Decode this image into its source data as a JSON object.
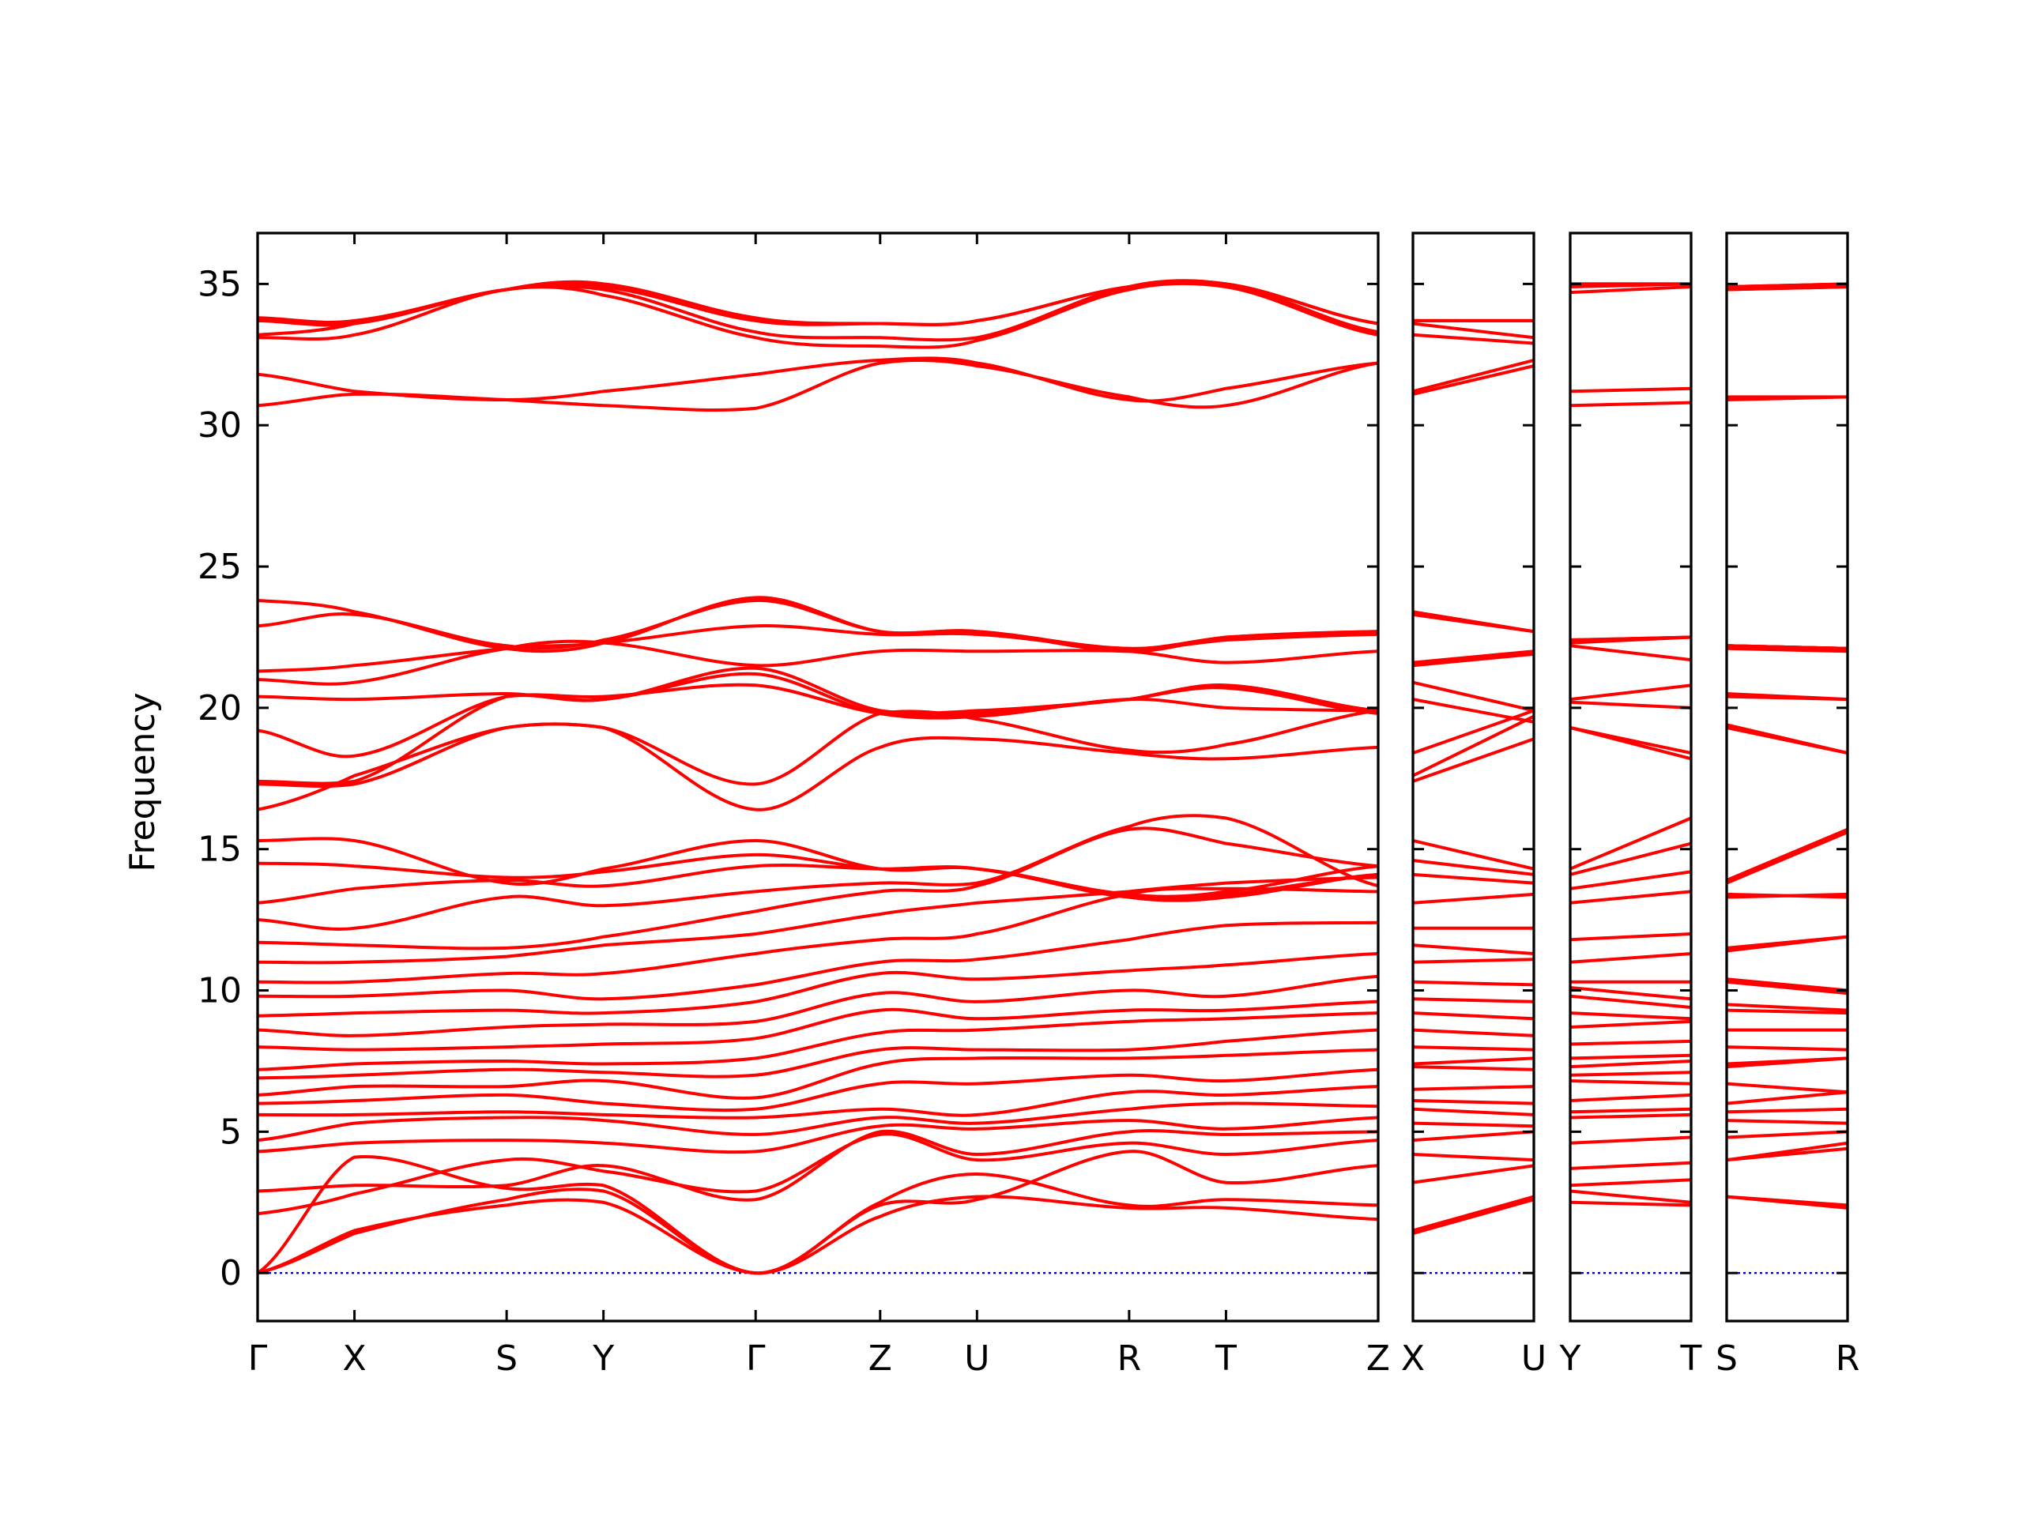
{
  "chart_data": {
    "type": "line",
    "ylabel": "Frequency",
    "xlabel": "",
    "ylim": [
      -1.7,
      36.8
    ],
    "yticks": [
      0,
      5,
      10,
      15,
      20,
      25,
      30,
      35
    ],
    "grid": false,
    "legend": "none",
    "colors": {
      "bands": "#ff0000",
      "zero_line": "#0000cc",
      "frame": "#000000"
    },
    "segments": [
      {
        "path": [
          "Γ",
          "X",
          "S",
          "Y",
          "Γ",
          "Z",
          "U",
          "R",
          "T",
          "Z"
        ],
        "tick_labels": [
          "Γ",
          "X",
          "S",
          "Y",
          "Γ",
          "Z",
          "U",
          "R",
          "T",
          "Z"
        ],
        "x": [
          0,
          0.7,
          1.8,
          2.5,
          3.6,
          4.5,
          5.2,
          6.3,
          7.0,
          8.1
        ],
        "bands": [
          [
            0,
            1.5,
            2.4,
            2.5,
            0,
            2.0,
            2.7,
            2.3,
            2.3,
            1.9
          ],
          [
            0,
            1.4,
            2.6,
            2.9,
            0,
            2.5,
            3.5,
            2.4,
            2.6,
            2.4
          ],
          [
            0,
            4.1,
            3.0,
            3.1,
            0,
            2.4,
            2.6,
            4.3,
            3.2,
            3.8
          ],
          [
            2.1,
            2.8,
            4.0,
            3.6,
            2.9,
            4.9,
            4.0,
            4.6,
            4.2,
            4.7
          ],
          [
            2.9,
            3.1,
            3.1,
            3.8,
            2.6,
            5.0,
            4.2,
            5.0,
            4.9,
            5.0
          ],
          [
            4.3,
            4.6,
            4.7,
            4.6,
            4.3,
            5.2,
            5.1,
            5.4,
            5.1,
            5.5
          ],
          [
            4.7,
            5.3,
            5.5,
            5.4,
            4.9,
            5.5,
            5.3,
            5.8,
            6.0,
            5.9
          ],
          [
            5.6,
            5.6,
            5.7,
            5.6,
            5.5,
            5.8,
            5.6,
            6.4,
            6.3,
            6.6
          ],
          [
            6.0,
            6.1,
            6.3,
            6.0,
            5.8,
            6.7,
            6.7,
            7.0,
            6.8,
            7.2
          ],
          [
            6.3,
            6.6,
            6.6,
            6.8,
            6.2,
            7.4,
            7.6,
            7.6,
            7.7,
            7.9
          ],
          [
            6.9,
            7.0,
            7.2,
            7.1,
            7.0,
            7.9,
            7.9,
            7.9,
            8.2,
            8.6
          ],
          [
            7.2,
            7.4,
            7.5,
            7.4,
            7.6,
            8.5,
            8.6,
            8.9,
            9.0,
            9.2
          ],
          [
            8.0,
            7.9,
            8.0,
            8.1,
            8.3,
            9.3,
            9.0,
            9.3,
            9.3,
            9.6
          ],
          [
            8.6,
            8.4,
            8.7,
            8.8,
            8.9,
            9.9,
            9.6,
            10.0,
            9.8,
            10.5
          ],
          [
            9.1,
            9.2,
            9.3,
            9.2,
            9.6,
            10.6,
            10.4,
            10.7,
            10.9,
            11.3
          ],
          [
            9.8,
            9.8,
            10.0,
            9.7,
            10.2,
            11.0,
            11.1,
            11.8,
            12.3,
            12.4
          ],
          [
            10.3,
            10.3,
            10.6,
            10.6,
            11.3,
            11.8,
            12.0,
            13.4,
            13.6,
            13.5
          ],
          [
            11.0,
            11.0,
            11.2,
            11.6,
            12.0,
            12.7,
            13.1,
            13.5,
            13.8,
            14.0
          ],
          [
            11.7,
            11.6,
            11.5,
            11.9,
            12.8,
            13.5,
            13.7,
            15.7,
            15.2,
            14.4
          ],
          [
            12.5,
            12.2,
            13.3,
            13.0,
            13.5,
            13.8,
            13.8,
            15.8,
            16.1,
            13.7
          ],
          [
            13.1,
            13.6,
            13.9,
            13.7,
            14.4,
            14.3,
            14.3,
            13.3,
            13.3,
            14.1
          ],
          [
            14.5,
            14.4,
            14.0,
            14.2,
            14.8,
            14.3,
            14.3,
            13.4,
            13.5,
            14.4
          ],
          [
            15.3,
            15.3,
            13.8,
            14.3,
            15.3,
            14.3,
            14.3,
            13.3,
            13.4,
            14.1
          ],
          [
            16.4,
            17.6,
            19.3,
            19.3,
            16.4,
            18.6,
            18.9,
            18.4,
            18.2,
            18.6
          ],
          [
            17.3,
            17.3,
            19.3,
            19.3,
            17.3,
            19.8,
            19.6,
            18.5,
            18.7,
            19.9
          ],
          [
            17.4,
            17.4,
            20.4,
            20.4,
            20.8,
            19.8,
            19.7,
            20.3,
            20.0,
            19.9
          ],
          [
            19.2,
            18.3,
            20.4,
            20.3,
            21.2,
            19.8,
            19.8,
            20.3,
            20.7,
            19.8
          ],
          [
            20.4,
            20.3,
            20.5,
            20.3,
            21.4,
            19.9,
            19.9,
            20.3,
            20.8,
            19.9
          ],
          [
            21.0,
            20.9,
            22.1,
            22.3,
            21.5,
            22.0,
            22.0,
            22.0,
            21.6,
            22.0
          ],
          [
            21.3,
            21.5,
            22.1,
            22.3,
            22.9,
            22.6,
            22.6,
            22.1,
            22.4,
            22.6
          ],
          [
            22.9,
            23.3,
            22.2,
            22.4,
            23.8,
            22.7,
            22.7,
            22.1,
            22.5,
            22.7
          ],
          [
            23.8,
            23.4,
            22.1,
            22.3,
            23.9,
            22.7,
            22.7,
            22.0,
            22.5,
            22.7
          ],
          [
            30.7,
            31.1,
            30.9,
            30.7,
            30.6,
            32.2,
            32.1,
            31.0,
            30.7,
            32.2
          ],
          [
            31.8,
            31.2,
            30.9,
            31.2,
            31.8,
            32.3,
            32.2,
            30.9,
            31.3,
            32.2
          ],
          [
            33.1,
            33.2,
            34.8,
            34.6,
            33.1,
            32.8,
            33.0,
            34.8,
            34.9,
            33.2
          ],
          [
            33.2,
            33.6,
            34.8,
            34.8,
            33.3,
            33.1,
            33.1,
            34.9,
            35.0,
            33.3
          ],
          [
            33.7,
            33.6,
            34.8,
            34.9,
            33.7,
            33.6,
            33.7,
            34.9,
            35.0,
            33.6
          ],
          [
            33.8,
            33.7,
            34.8,
            35.0,
            33.8,
            33.6,
            33.7,
            34.9,
            35.0,
            33.6
          ]
        ]
      },
      {
        "path": [
          "X",
          "U"
        ],
        "tick_labels": [
          "X",
          "U"
        ],
        "x": [
          0,
          1
        ],
        "bands": [
          [
            1.4,
            2.6
          ],
          [
            1.5,
            2.7
          ],
          [
            3.2,
            3.8
          ],
          [
            4.2,
            4.0
          ],
          [
            4.7,
            5.0
          ],
          [
            5.3,
            5.2
          ],
          [
            5.8,
            5.6
          ],
          [
            6.1,
            6.0
          ],
          [
            6.5,
            6.6
          ],
          [
            7.3,
            7.2
          ],
          [
            7.4,
            7.6
          ],
          [
            8.0,
            7.9
          ],
          [
            8.6,
            8.4
          ],
          [
            9.2,
            9.0
          ],
          [
            9.7,
            9.6
          ],
          [
            10.3,
            10.2
          ],
          [
            11.0,
            11.1
          ],
          [
            11.6,
            11.3
          ],
          [
            12.2,
            12.2
          ],
          [
            13.1,
            13.4
          ],
          [
            14.1,
            13.8
          ],
          [
            14.6,
            14.1
          ],
          [
            15.3,
            14.3
          ],
          [
            17.4,
            18.9
          ],
          [
            17.6,
            19.7
          ],
          [
            18.4,
            19.9
          ],
          [
            20.3,
            19.5
          ],
          [
            20.9,
            19.9
          ],
          [
            21.5,
            21.9
          ],
          [
            21.6,
            22.0
          ],
          [
            23.3,
            22.7
          ],
          [
            23.4,
            22.7
          ],
          [
            31.1,
            32.1
          ],
          [
            31.2,
            32.3
          ],
          [
            33.2,
            32.9
          ],
          [
            33.6,
            33.1
          ],
          [
            33.7,
            33.7
          ],
          [
            33.7,
            33.7
          ]
        ]
      },
      {
        "path": [
          "Y",
          "T"
        ],
        "tick_labels": [
          "Y",
          "T"
        ],
        "x": [
          0,
          1
        ],
        "bands": [
          [
            2.5,
            2.4
          ],
          [
            2.9,
            2.5
          ],
          [
            3.1,
            3.3
          ],
          [
            3.7,
            3.9
          ],
          [
            4.6,
            4.8
          ],
          [
            5.5,
            5.6
          ],
          [
            5.7,
            5.8
          ],
          [
            6.1,
            6.3
          ],
          [
            6.8,
            6.7
          ],
          [
            7.0,
            7.1
          ],
          [
            7.3,
            7.5
          ],
          [
            7.6,
            7.7
          ],
          [
            8.1,
            8.2
          ],
          [
            8.7,
            8.9
          ],
          [
            9.2,
            9.0
          ],
          [
            9.8,
            9.4
          ],
          [
            10.1,
            9.7
          ],
          [
            10.3,
            10.3
          ],
          [
            11.0,
            11.3
          ],
          [
            11.8,
            12.0
          ],
          [
            13.1,
            13.5
          ],
          [
            13.6,
            14.2
          ],
          [
            14.1,
            15.2
          ],
          [
            14.3,
            16.1
          ],
          [
            19.3,
            18.2
          ],
          [
            19.3,
            18.4
          ],
          [
            20.2,
            20.0
          ],
          [
            20.3,
            20.8
          ],
          [
            22.2,
            21.7
          ],
          [
            22.3,
            22.5
          ],
          [
            22.4,
            22.5
          ],
          [
            22.4,
            22.5
          ],
          [
            30.7,
            30.8
          ],
          [
            31.2,
            31.3
          ],
          [
            34.7,
            34.9
          ],
          [
            34.9,
            35.0
          ],
          [
            35.0,
            35.0
          ],
          [
            35.0,
            35.0
          ]
        ]
      },
      {
        "path": [
          "S",
          "R"
        ],
        "tick_labels": [
          "S",
          "R"
        ],
        "x": [
          0,
          1
        ],
        "bands": [
          [
            2.7,
            2.3
          ],
          [
            2.7,
            2.4
          ],
          [
            4.0,
            4.4
          ],
          [
            4.0,
            4.6
          ],
          [
            4.8,
            5.0
          ],
          [
            5.4,
            5.3
          ],
          [
            5.7,
            5.8
          ],
          [
            6.0,
            6.4
          ],
          [
            6.7,
            6.4
          ],
          [
            7.3,
            7.6
          ],
          [
            7.4,
            7.6
          ],
          [
            8.0,
            7.9
          ],
          [
            8.6,
            8.6
          ],
          [
            9.3,
            9.2
          ],
          [
            9.5,
            9.3
          ],
          [
            10.3,
            9.9
          ],
          [
            10.4,
            10.0
          ],
          [
            11.4,
            11.9
          ],
          [
            11.5,
            11.9
          ],
          [
            13.3,
            13.4
          ],
          [
            13.4,
            13.3
          ],
          [
            13.8,
            15.6
          ],
          [
            13.9,
            15.7
          ],
          [
            19.3,
            18.4
          ],
          [
            19.4,
            18.4
          ],
          [
            20.4,
            20.3
          ],
          [
            20.5,
            20.3
          ],
          [
            22.1,
            22.0
          ],
          [
            22.2,
            22.1
          ],
          [
            22.2,
            22.1
          ],
          [
            22.2,
            22.1
          ],
          [
            22.2,
            22.1
          ],
          [
            30.9,
            31.0
          ],
          [
            31.0,
            31.0
          ],
          [
            34.8,
            34.9
          ],
          [
            34.8,
            34.9
          ],
          [
            34.9,
            35.0
          ],
          [
            34.9,
            35.0
          ]
        ]
      }
    ]
  }
}
